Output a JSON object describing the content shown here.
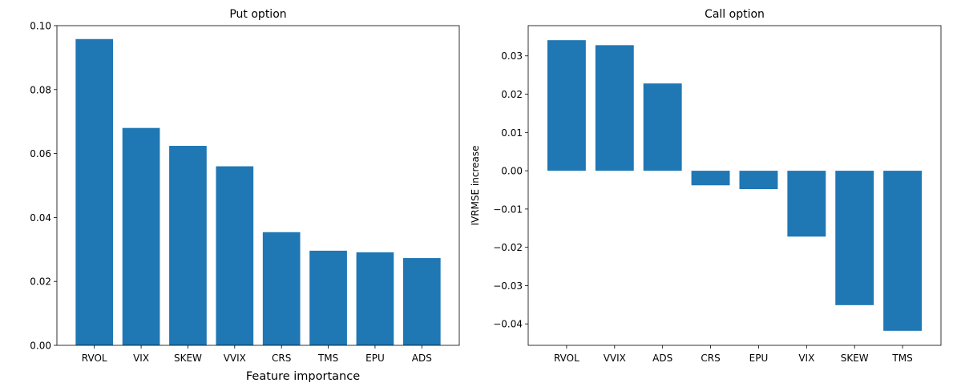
{
  "figure": {
    "supxlabel": "Feature importance"
  },
  "chart_data": [
    {
      "type": "bar",
      "title": "Put option",
      "xlabel": "",
      "ylabel": "",
      "categories": [
        "RVOL",
        "VIX",
        "SKEW",
        "VVIX",
        "CRS",
        "TMS",
        "EPU",
        "ADS"
      ],
      "values": [
        0.0958,
        0.068,
        0.0624,
        0.056,
        0.0354,
        0.0296,
        0.0291,
        0.0273
      ],
      "ylim": [
        0,
        0.1
      ],
      "yticks": [
        0.0,
        0.02,
        0.04,
        0.06,
        0.08,
        0.1
      ],
      "ytick_labels": [
        "0.00",
        "0.02",
        "0.04",
        "0.06",
        "0.08",
        "0.10"
      ],
      "grid": false,
      "color": "#1f77b4"
    },
    {
      "type": "bar",
      "title": "Call option",
      "xlabel": "",
      "ylabel": "IVRMSE increase",
      "categories": [
        "RVOL",
        "VVIX",
        "ADS",
        "CRS",
        "EPU",
        "VIX",
        "SKEW",
        "TMS"
      ],
      "values": [
        0.0341,
        0.0328,
        0.0228,
        -0.0038,
        -0.0048,
        -0.0172,
        -0.0351,
        -0.0418
      ],
      "ylim": [
        -0.0456,
        0.0379
      ],
      "yticks": [
        -0.04,
        -0.03,
        -0.02,
        -0.01,
        0.0,
        0.01,
        0.02,
        0.03
      ],
      "ytick_labels": [
        "−0.04",
        "−0.03",
        "−0.02",
        "−0.01",
        "0.00",
        "0.01",
        "0.02",
        "0.03"
      ],
      "grid": false,
      "color": "#1f77b4"
    }
  ]
}
